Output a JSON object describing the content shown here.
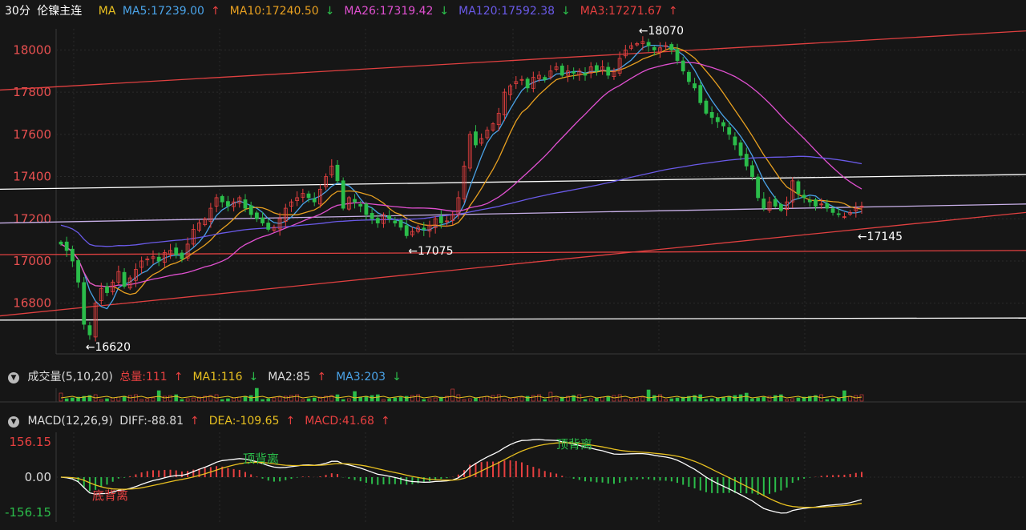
{
  "header": {
    "period": "30分",
    "symbol": "伦镍主连",
    "ma_label": "MA",
    "items": [
      {
        "text": "MA5:17239.00",
        "color": "#4aa3e8",
        "arrow": "↑",
        "arrow_color": "#e84040"
      },
      {
        "text": "MA10:17240.50",
        "color": "#e8a020",
        "arrow": "↓",
        "arrow_color": "#2bbd4a"
      },
      {
        "text": "MA26:17319.42",
        "color": "#e050d0",
        "arrow": "↓",
        "arrow_color": "#2bbd4a"
      },
      {
        "text": "MA120:17592.38",
        "color": "#6a5ae8",
        "arrow": "↓",
        "arrow_color": "#2bbd4a"
      },
      {
        "text": "MA3:17271.67",
        "color": "#e84040",
        "arrow": "↑",
        "arrow_color": "#e84040"
      }
    ]
  },
  "volume_header": {
    "title": "成交量(5,10,20)",
    "items": [
      {
        "text": "总量:111",
        "color": "#e84040",
        "arrow": "↑",
        "arrow_color": "#e84040"
      },
      {
        "text": "MA1:116",
        "color": "#e8c020",
        "arrow": "↓",
        "arrow_color": "#2bbd4a"
      },
      {
        "text": "MA2:85",
        "color": "#dddddd",
        "arrow": "↑",
        "arrow_color": "#e84040"
      },
      {
        "text": "MA3:203",
        "color": "#4aa3e8",
        "arrow": "↓",
        "arrow_color": "#2bbd4a"
      }
    ]
  },
  "macd_header": {
    "title": "MACD(12,26,9)",
    "items": [
      {
        "text": "DIFF:-88.81",
        "color": "#dddddd",
        "arrow": "↑",
        "arrow_color": "#e84040"
      },
      {
        "text": "DEA:-109.65",
        "color": "#e8c020",
        "arrow": "↑",
        "arrow_color": "#e84040"
      },
      {
        "text": "MACD:41.68",
        "color": "#e84040",
        "arrow": "↑",
        "arrow_color": "#e84040"
      }
    ]
  },
  "colors": {
    "up": "#e84040",
    "down": "#2bbd4a",
    "axis_text": "#e85050",
    "grid": "#2a2a2a"
  },
  "chart_data": [
    {
      "type": "candlestick",
      "title": "30分 伦镍主连",
      "y_ticks": [
        16800,
        17000,
        17200,
        17400,
        17600,
        17800,
        18000
      ],
      "ylim": [
        16560,
        18100
      ],
      "annotations": [
        {
          "label": "←18070",
          "x_index": 100,
          "value": 18070
        },
        {
          "label": "←17075",
          "x_index": 60,
          "value": 17075
        },
        {
          "label": "←16620",
          "x_index": 4,
          "value": 16620
        },
        {
          "label": "←17145",
          "x_index": 138,
          "value": 17145
        }
      ],
      "close_series": [
        17080,
        17050,
        17000,
        16900,
        16700,
        16650,
        16800,
        16870,
        16850,
        16900,
        16950,
        16880,
        16920,
        16960,
        17000,
        17010,
        17020,
        17000,
        17040,
        17050,
        17030,
        17010,
        17080,
        17150,
        17180,
        17200,
        17250,
        17300,
        17280,
        17260,
        17280,
        17300,
        17250,
        17220,
        17200,
        17180,
        17150,
        17160,
        17200,
        17250,
        17280,
        17300,
        17320,
        17300,
        17280,
        17340,
        17400,
        17450,
        17380,
        17250,
        17300,
        17280,
        17260,
        17220,
        17200,
        17180,
        17220,
        17200,
        17180,
        17160,
        17120,
        17140,
        17160,
        17150,
        17170,
        17200,
        17180,
        17190,
        17220,
        17300,
        17450,
        17600,
        17550,
        17580,
        17620,
        17650,
        17700,
        17800,
        17830,
        17850,
        17860,
        17820,
        17870,
        17880,
        17860,
        17900,
        17920,
        17880,
        17900,
        17890,
        17900,
        17880,
        17920,
        17900,
        17920,
        17880,
        17900,
        17960,
        18000,
        18020,
        18030,
        18040,
        18020,
        18000,
        18010,
        18020,
        18000,
        17950,
        17900,
        17850,
        17820,
        17750,
        17700,
        17680,
        17660,
        17640,
        17600,
        17550,
        17500,
        17450,
        17400,
        17300,
        17250,
        17280,
        17260,
        17240,
        17280,
        17380,
        17320,
        17300,
        17280,
        17260,
        17270,
        17250,
        17230,
        17220,
        17210,
        17230,
        17250,
        17260
      ],
      "ma_lines": [
        {
          "name": "MA5",
          "color": "#4aa3e8"
        },
        {
          "name": "MA10",
          "color": "#e8a020"
        },
        {
          "name": "MA26",
          "color": "#e050d0"
        },
        {
          "name": "MA120",
          "color": "#6a5ae8"
        }
      ],
      "trend_lines": [
        {
          "color": "#e04040",
          "from": [
            0,
            17810
          ],
          "to": [
            150,
            18090
          ]
        },
        {
          "color": "#e04040",
          "from": [
            0,
            16740
          ],
          "to": [
            150,
            17230
          ]
        },
        {
          "color": "#e04040",
          "from": [
            0,
            17030
          ],
          "to": [
            150,
            17050
          ]
        },
        {
          "color": "#ffffff",
          "from": [
            0,
            17340
          ],
          "to": [
            150,
            17410
          ]
        },
        {
          "color": "#ffffff",
          "from": [
            0,
            16720
          ],
          "to": [
            150,
            16730
          ]
        },
        {
          "color": "#c8b0e8",
          "from": [
            0,
            17180
          ],
          "to": [
            150,
            17270
          ]
        }
      ]
    },
    {
      "type": "bar",
      "title": "成交量(5,10,20)",
      "note": "volume histogram"
    },
    {
      "type": "bar",
      "title": "MACD(12,26,9)",
      "y_ticks": [
        "156.15",
        "0.00",
        "-156.15"
      ],
      "ylim": [
        -175,
        175
      ],
      "annotations": [
        {
          "label": "顶背离",
          "x_index": 32
        },
        {
          "label": "顶背离",
          "x_index": 85
        },
        {
          "label": "底背离",
          "x_index": 8
        }
      ]
    }
  ]
}
